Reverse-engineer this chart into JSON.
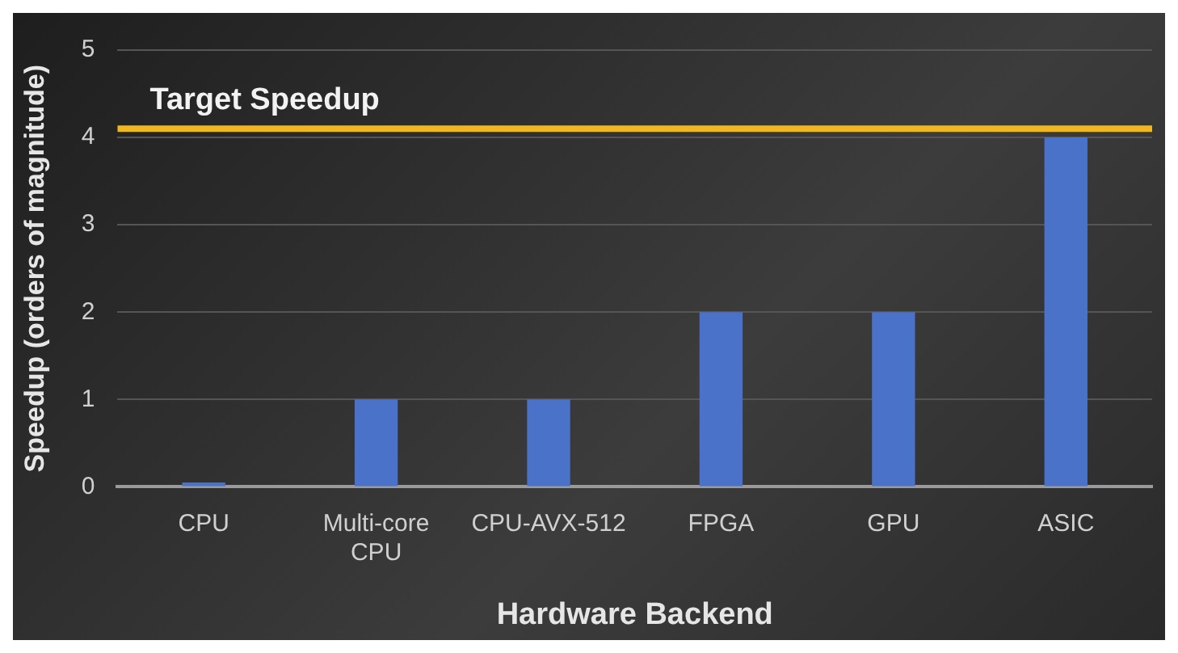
{
  "chart_data": {
    "type": "bar",
    "xlabel": "Hardware Backend",
    "ylabel": "Speedup (orders of magnitude)",
    "categories": [
      "CPU",
      "Multi-core CPU",
      "CPU-AVX-512",
      "FPGA",
      "GPU",
      "ASIC"
    ],
    "values": [
      0.05,
      1,
      1,
      2,
      2,
      4
    ],
    "color": "#4a72c8",
    "ylim": [
      0,
      5
    ],
    "yticks": [
      0,
      1,
      2,
      3,
      4,
      5
    ],
    "grid": "y",
    "ref_lines": [
      {
        "axis": "y",
        "value": 4.1,
        "label": "Target Speedup",
        "color": "#f0b81e"
      }
    ]
  }
}
